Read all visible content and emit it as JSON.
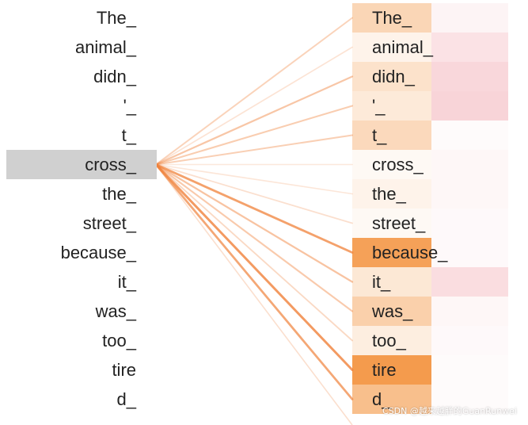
{
  "tokens": [
    "The_",
    "animal_",
    "didn_",
    "'_",
    "t_",
    "cross_",
    "the_",
    "street_",
    "because_",
    "it_",
    "was_",
    "too_",
    "tire",
    "d_"
  ],
  "selected_index": 5,
  "head_a_attention": [
    0.35,
    0.1,
    0.25,
    0.18,
    0.32,
    0.05,
    0.1,
    0.05,
    0.8,
    0.2,
    0.4,
    0.15,
    0.85,
    0.55
  ],
  "head_b_attention": [
    0.08,
    0.2,
    0.28,
    0.3,
    0.03,
    0.06,
    0.06,
    0.04,
    0.04,
    0.24,
    0.06,
    0.04,
    0.03,
    0.03
  ],
  "line_strength": [
    0.35,
    0.22,
    0.45,
    0.4,
    0.38,
    0.18,
    0.2,
    0.25,
    0.75,
    0.48,
    0.42,
    0.3,
    0.8,
    0.7
  ],
  "colors": {
    "head_a": "#f28a2e",
    "head_b": "#e9707e",
    "line": "#f0813a",
    "selected_bg": "#d0d0d0",
    "text": "#222222"
  },
  "watermark": "CSDN @越来越胖的GuanRunwei"
}
